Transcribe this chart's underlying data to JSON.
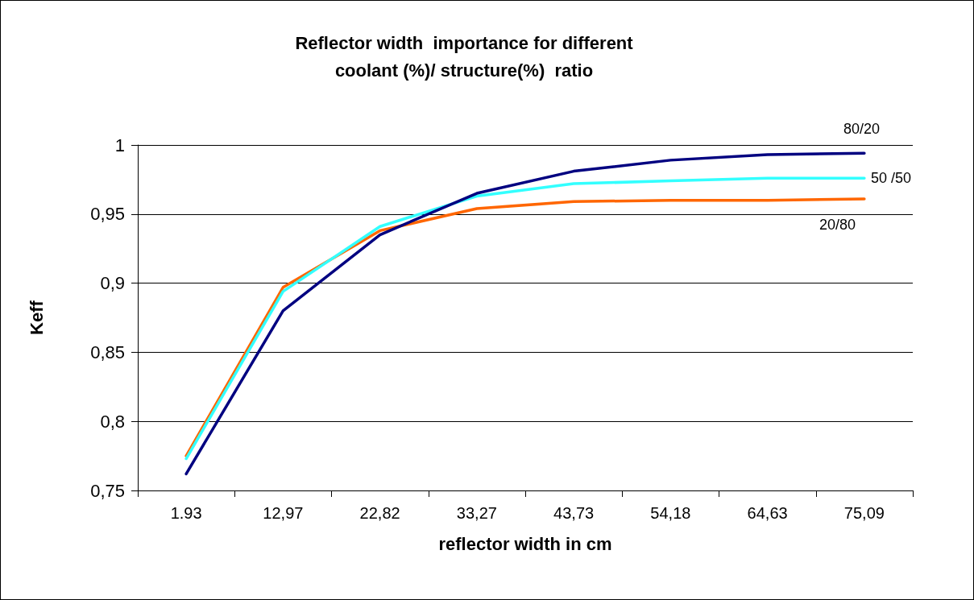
{
  "chart_data": {
    "type": "line",
    "title": "Reflector width  importance for different\ncoolant (%)/ structure(%)  ratio",
    "xlabel": "reflector width in cm",
    "ylabel": "Keff",
    "categories": [
      "1.93",
      "12,97",
      "22,82",
      "33,27",
      "43,73",
      "54,18",
      "64,63",
      "75,09"
    ],
    "series": [
      {
        "name": "80/20",
        "color": "#000080",
        "values": [
          0.762,
          0.88,
          0.935,
          0.965,
          0.981,
          0.989,
          0.993,
          0.994
        ]
      },
      {
        "name": "50 /50",
        "color": "#33ffff",
        "values": [
          0.773,
          0.894,
          0.941,
          0.963,
          0.972,
          0.974,
          0.976,
          0.976
        ]
      },
      {
        "name": "20/80",
        "color": "#ff6600",
        "values": [
          0.775,
          0.897,
          0.938,
          0.954,
          0.959,
          0.96,
          0.96,
          0.961
        ]
      }
    ],
    "ylim": [
      0.75,
      1
    ],
    "yticks": [
      {
        "value": 0.75,
        "label": "0,75"
      },
      {
        "value": 0.8,
        "label": "0,8"
      },
      {
        "value": 0.85,
        "label": "0,85"
      },
      {
        "value": 0.9,
        "label": "0,9"
      },
      {
        "value": 0.95,
        "label": "0,95"
      },
      1
    ],
    "grid": "y",
    "legend": false,
    "marker": "none",
    "line_style": "solid"
  }
}
